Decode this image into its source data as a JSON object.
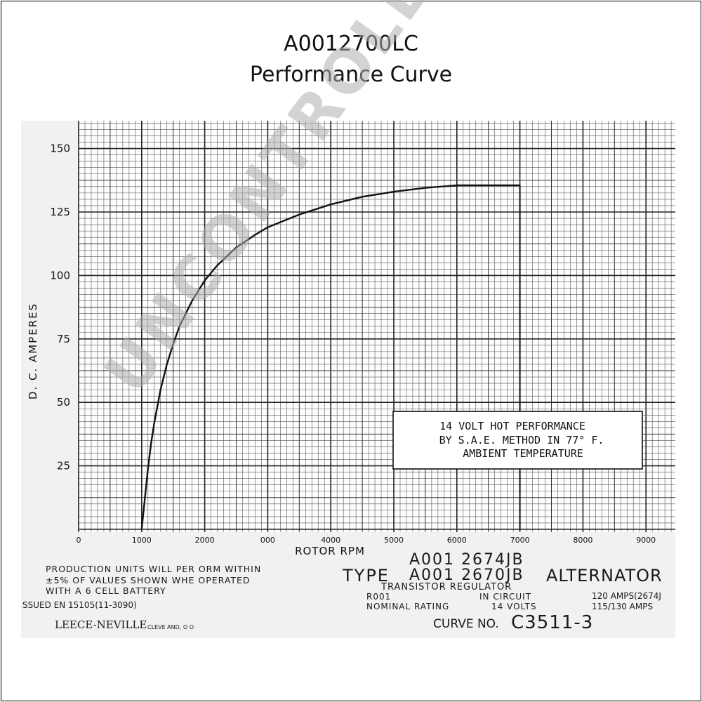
{
  "header": {
    "title": "A0012700LC",
    "subtitle": "Performance Curve"
  },
  "chart_data": {
    "type": "line",
    "xlabel": "ROTOR RPM",
    "ylabel": "D. C. AMPERES",
    "xlim": [
      0,
      9500
    ],
    "ylim": [
      0,
      162
    ],
    "x_ticks": [
      "0",
      "1000",
      "2000",
      "000",
      "4000",
      "5000",
      "6000",
      "7000",
      "8000",
      "9000"
    ],
    "y_ticks": [
      "25",
      "50",
      "75",
      "100",
      "125",
      "150"
    ],
    "grid": true,
    "series": [
      {
        "x": [
          1000,
          1050,
          1100,
          1150,
          1200,
          1300,
          1400,
          1500,
          1600,
          1800,
          2000,
          2200,
          2500,
          2800,
          3000,
          3500,
          4000,
          4500,
          5000,
          5500,
          6000,
          6500,
          7000
        ],
        "values": [
          0,
          12,
          24,
          34,
          42,
          55,
          65,
          73,
          80,
          90,
          98,
          104,
          111,
          116,
          119,
          124,
          128,
          131,
          133,
          134.5,
          135.5,
          135.5,
          135.5
        ]
      }
    ],
    "end_marker": {
      "x": 7000,
      "y_from": 135.5,
      "y_to": 0
    },
    "annotations": [
      "14 VOLT HOT PERFORMANCE",
      "BY S.A.E. METHOD IN 77° F.",
      "AMBIENT TEMPERATURE"
    ]
  },
  "footer": {
    "production_line1": "PRODUCTION UNITS WILL PER ORM WITHIN",
    "production_line2": "±5% OF VALUES SHOWN WHE OPERATED",
    "production_line3": "WITH A 6 CELL BATTERY",
    "issued": "SSUED EN 15105(11-3090)",
    "company": "LEECE-NEVILLE",
    "city": "CLEVE AND, O O",
    "type_label": "TYPE",
    "model1": "A001 2674JB",
    "model2": "A001 2670JB",
    "alternator": "ALTERNATOR",
    "transistor": "TRANSISTOR REGULATOR",
    "r001": "R001",
    "in_circuit": "IN CIRCUIT",
    "nominal": "NOMINAL RATING",
    "volts": "14 VOLTS",
    "amps1": "120 AMPS(2674J",
    "amps2": "115/130 AMPS",
    "curve_label": "CURVE NO.",
    "curve_no": "C3511-3"
  },
  "watermark": "UNCONTROLLED COPY"
}
